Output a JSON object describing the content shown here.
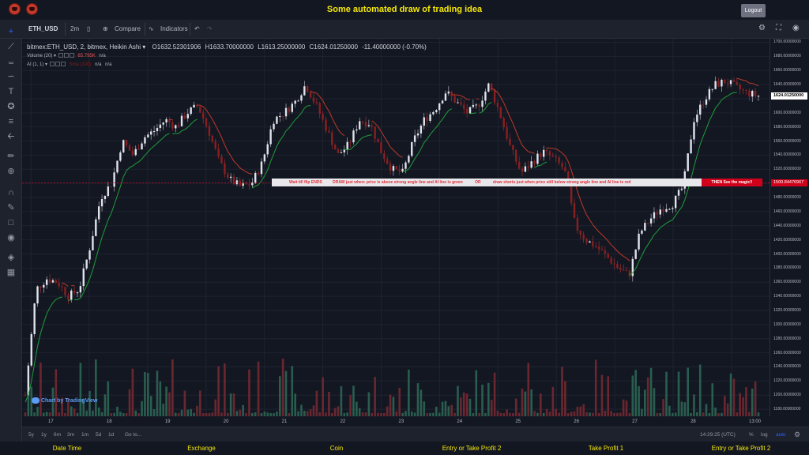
{
  "app": {
    "title": "Some automated draw of trading idea",
    "logout_label": "Logout"
  },
  "toolbar": {
    "symbol": "ETH_USD",
    "interval": "2m",
    "compare_label": "Compare",
    "indicators_label": "Indicators"
  },
  "legend": {
    "symbol_line": "bitmex:ETH_USD, 2, bitmex, Heikin Ashi",
    "open": "O1632.52301906",
    "high": "H1633.70000000",
    "low": "L1613.25000000",
    "close": "C1624.01250000",
    "change": "-11.40000000 (-0.70%)",
    "volume_label": "Volume (20)",
    "volume_value": "65.795K",
    "volume_na": "n/a",
    "ai_label": "AI (1, 1)",
    "ai_value": "Sma (100)",
    "ai_na1": "n/a",
    "ai_na2": "n/a"
  },
  "banner": {
    "parts": [
      "Wait till flip ENDS",
      "DRAW just when:  price is above strong angle line and AI line is green",
      "OR",
      "draw shorts just when price still below strong angle line and AI line is red"
    ],
    "end_label": "THEN See the magic!!"
  },
  "price_axis": {
    "ticks": [
      "1700.00000000",
      "1680.00000000",
      "1660.00000000",
      "1640.00000000",
      "1620.00000000",
      "1600.00000000",
      "1580.00000000",
      "1560.00000000",
      "1540.00000000",
      "1520.00000000",
      "1500.00000000",
      "1480.00000000",
      "1460.00000000",
      "1440.00000000",
      "1420.00000000",
      "1400.00000000",
      "1380.00000000",
      "1360.00000000",
      "1340.00000000",
      "1320.00000000",
      "1300.00000000",
      "1280.00000000",
      "1260.00000000",
      "1240.00000000",
      "1220.00000000",
      "1200.00000000",
      "1180.00000000"
    ],
    "current_price": "1624.01250000",
    "level_price": "1500.84476967"
  },
  "time_axis": {
    "ticks": [
      "17",
      "18",
      "19",
      "20",
      "21",
      "22",
      "23",
      "24",
      "25",
      "26",
      "27",
      "28",
      "13:00"
    ]
  },
  "range_buttons": [
    "5y",
    "1y",
    "6m",
    "3m",
    "1m",
    "5d",
    "1d"
  ],
  "goto_label": "Go to...",
  "clock": "14:29:25 (UTC)",
  "scale_options": [
    "%",
    "log",
    "auto"
  ],
  "brand": "Chart by TradingView",
  "footer": {
    "items": [
      "Date Time",
      "Exchange",
      "Coin",
      "Entry or Take Profit 2",
      "Take Profit 1",
      "Entry or Take Profit 2"
    ]
  },
  "colors": {
    "up": "#26a69a",
    "down": "#ef5350",
    "ai_green": "#1f9e3a",
    "ai_red": "#c0392b",
    "accent": "#f5e80a"
  },
  "chart_data": {
    "type": "candlestick",
    "ylim": [
      1170,
      1705
    ],
    "x": [
      "17",
      "18",
      "19",
      "20",
      "21",
      "22",
      "23",
      "24",
      "25",
      "26",
      "27",
      "28",
      "13:00"
    ],
    "close_path": [
      1200,
      1350,
      1365,
      1360,
      1340,
      1350,
      1410,
      1480,
      1500,
      1560,
      1540,
      1565,
      1575,
      1590,
      1580,
      1600,
      1610,
      1575,
      1530,
      1505,
      1495,
      1500,
      1530,
      1590,
      1600,
      1615,
      1640,
      1610,
      1575,
      1540,
      1555,
      1590,
      1585,
      1545,
      1520,
      1515,
      1560,
      1590,
      1605,
      1630,
      1615,
      1600,
      1610,
      1640,
      1600,
      1550,
      1515,
      1530,
      1545,
      1535,
      1520,
      1440,
      1420,
      1410,
      1395,
      1380,
      1370,
      1430,
      1450,
      1465,
      1470,
      1495,
      1590,
      1620,
      1640,
      1645,
      1635,
      1628,
      1624
    ],
    "level": 1500.84
  }
}
